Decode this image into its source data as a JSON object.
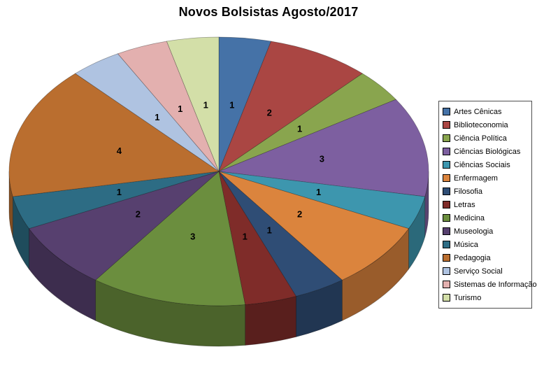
{
  "background_color": "#FFFFFF",
  "chart_data": {
    "type": "pie",
    "three_d": true,
    "title": "Novos Bolsistas Agosto/2017",
    "legend_position": "right",
    "direction": "clockwise",
    "start_angle_deg": 0,
    "total": 25,
    "labels": [
      "Artes Cênicas",
      "Biblioteconomia",
      "Ciência Política",
      "Ciências Biológicas",
      "Ciências Sociais",
      "Enfermagem",
      "Filosofia",
      "Letras",
      "Medicina",
      "Museologia",
      "Música",
      "Pedagogia",
      "Serviço Social",
      "Sistemas de Informação",
      "Turismo"
    ],
    "values": [
      1,
      2,
      1,
      3,
      1,
      2,
      1,
      1,
      3,
      2,
      1,
      4,
      1,
      1,
      1
    ],
    "colors": [
      "#4572A7",
      "#AA4643",
      "#89A54E",
      "#7D5FA0",
      "#3D96AE",
      "#DB843D",
      "#2F4D75",
      "#7F2C29",
      "#6B8E3E",
      "#57406F",
      "#2D6C84",
      "#BA6E2F",
      "#AFC3E1",
      "#E3B0AF",
      "#D3DFA8"
    ]
  }
}
